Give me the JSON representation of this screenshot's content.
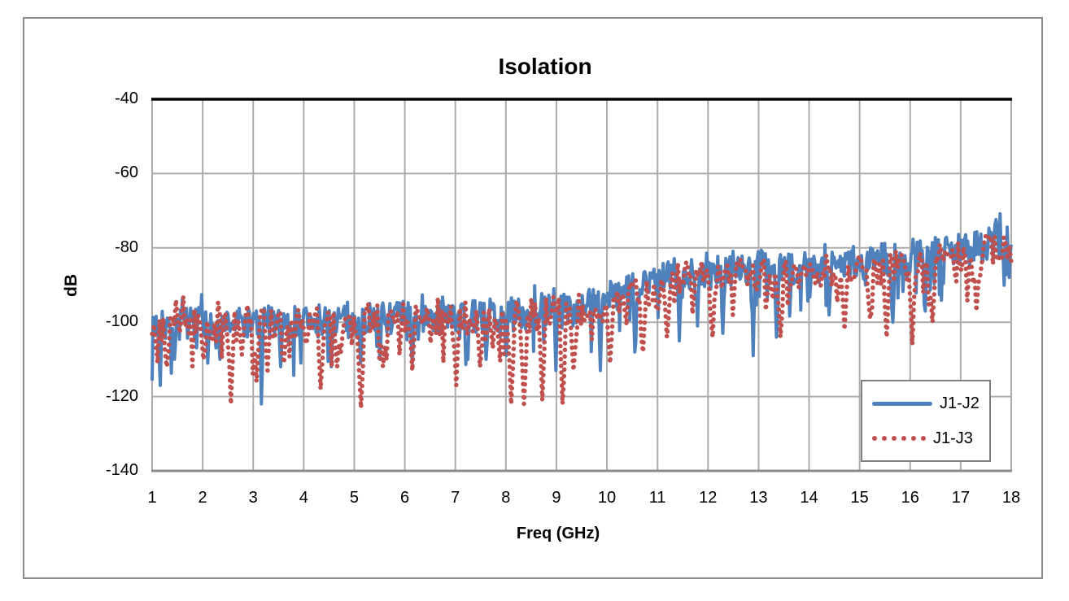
{
  "title": "Isolation",
  "axes": {
    "x": {
      "label": "Freq (GHz)",
      "min": 1,
      "max": 18,
      "tick_labels": [
        "1",
        "2",
        "3",
        "4",
        "5",
        "6",
        "7",
        "8",
        "9",
        "10",
        "11",
        "12",
        "13",
        "14",
        "15",
        "16",
        "17",
        "18"
      ],
      "tick_values": [
        1,
        2,
        3,
        4,
        5,
        6,
        7,
        8,
        9,
        10,
        11,
        12,
        13,
        14,
        15,
        16,
        17,
        18
      ]
    },
    "y": {
      "label": "dB",
      "min": -140,
      "max": -40,
      "tick_labels": [
        "-40",
        "-60",
        "-80",
        "-100",
        "-120",
        "-140"
      ],
      "tick_values": [
        -40,
        -60,
        -80,
        -100,
        -120,
        -140
      ]
    }
  },
  "legend": {
    "position": "inside-bottom-right",
    "items": [
      {
        "label": "J1-J2",
        "color": "#4F81BD",
        "line_style": "solid"
      },
      {
        "label": "J1-J3",
        "color": "#C0504D",
        "line_style": "dotted"
      }
    ]
  },
  "colors": {
    "series_j1j2": "#4F81BD",
    "series_j1j3": "#C0504D",
    "gridline": "#ACACAC",
    "axis_line": "#8C8C8C",
    "chart_border": "#8C8C8C",
    "plot_top_line": "#000000",
    "text": "#000000",
    "background": "#FFFFFF"
  },
  "chart_data": {
    "type": "line",
    "title": "Isolation",
    "xlabel": "Freq (GHz)",
    "ylabel": "dB",
    "xlim": [
      1,
      18
    ],
    "ylim": [
      -140,
      -40
    ],
    "x_ticks": [
      1,
      2,
      3,
      4,
      5,
      6,
      7,
      8,
      9,
      10,
      11,
      12,
      13,
      14,
      15,
      16,
      17,
      18
    ],
    "y_ticks": [
      -140,
      -120,
      -100,
      -80,
      -60,
      -40
    ],
    "grid": true,
    "legend_position": "inside-bottom-right",
    "series": [
      {
        "name": "J1-J2",
        "color": "#4F81BD",
        "line_style": "solid",
        "line_width": 4,
        "points": 850,
        "seed": 7,
        "trend_db_by_ghz": [
          [
            1,
            -100.5
          ],
          [
            2,
            -100.5
          ],
          [
            3,
            -100
          ],
          [
            4,
            -99.5
          ],
          [
            5,
            -99
          ],
          [
            6,
            -98.5
          ],
          [
            7,
            -98.5
          ],
          [
            8,
            -98
          ],
          [
            9,
            -97
          ],
          [
            9.7,
            -96
          ],
          [
            10.2,
            -93.5
          ],
          [
            10.7,
            -90
          ],
          [
            11.2,
            -87.5
          ],
          [
            11.7,
            -86.5
          ],
          [
            12.5,
            -86
          ],
          [
            13,
            -85.5
          ],
          [
            14,
            -85
          ],
          [
            15,
            -84
          ],
          [
            16,
            -82.5
          ],
          [
            17,
            -80
          ],
          [
            18,
            -78.5
          ]
        ],
        "noise_halfspan_db": 4.5,
        "dip_prob": 0.1,
        "dip_max_extra_db": 9,
        "peak_prob": 0.06,
        "peak_max_extra_db": 4,
        "deep_dips_ghz_db": [
          [
            1.16,
            -117
          ],
          [
            1.45,
            -110
          ],
          [
            2.1,
            -111
          ],
          [
            2.35,
            -110
          ],
          [
            3.17,
            -122
          ],
          [
            3.55,
            -112
          ],
          [
            4.55,
            -112
          ],
          [
            5.12,
            -111
          ],
          [
            5.5,
            -110
          ],
          [
            6.15,
            -111
          ],
          [
            7.25,
            -110
          ],
          [
            7.6,
            -110
          ],
          [
            8.0,
            -109
          ],
          [
            8.98,
            -113
          ],
          [
            9.87,
            -113
          ],
          [
            10.55,
            -108
          ],
          [
            11.43,
            -105
          ],
          [
            11.8,
            -101
          ],
          [
            12.3,
            -103
          ],
          [
            12.9,
            -109
          ],
          [
            13.35,
            -104
          ],
          [
            14.4,
            -98
          ],
          [
            15.65,
            -100
          ],
          [
            16.3,
            -97
          ]
        ]
      },
      {
        "name": "J1-J3",
        "color": "#C0504D",
        "line_style": "dotted",
        "line_width": 5.5,
        "dot_spacing_px": 8,
        "points": 470,
        "seed": 99,
        "trend_db_by_ghz": [
          [
            1,
            -101
          ],
          [
            2,
            -101
          ],
          [
            3,
            -100.5
          ],
          [
            4,
            -100
          ],
          [
            5,
            -99.5
          ],
          [
            6,
            -99
          ],
          [
            7,
            -99
          ],
          [
            8,
            -98.5
          ],
          [
            9,
            -97.5
          ],
          [
            9.7,
            -96.5
          ],
          [
            10.2,
            -94.5
          ],
          [
            10.7,
            -91.5
          ],
          [
            11.2,
            -89
          ],
          [
            11.7,
            -88
          ],
          [
            12.5,
            -87.5
          ],
          [
            13,
            -87
          ],
          [
            14,
            -86.5
          ],
          [
            15,
            -85.5
          ],
          [
            16,
            -84.5
          ],
          [
            17,
            -82
          ],
          [
            18,
            -80.5
          ]
        ],
        "noise_halfspan_db": 4.5,
        "dip_prob": 0.15,
        "dip_max_extra_db": 9,
        "peak_prob": 0.06,
        "peak_max_extra_db": 4,
        "deep_dips_ghz_db": [
          [
            1.3,
            -112
          ],
          [
            2.0,
            -110
          ],
          [
            2.55,
            -122
          ],
          [
            3.05,
            -116
          ],
          [
            3.3,
            -113
          ],
          [
            3.6,
            -111
          ],
          [
            4.35,
            -118
          ],
          [
            4.65,
            -112
          ],
          [
            5.15,
            -123
          ],
          [
            5.55,
            -112
          ],
          [
            6.15,
            -113
          ],
          [
            7.03,
            -117
          ],
          [
            7.5,
            -112
          ],
          [
            8.1,
            -122
          ],
          [
            8.37,
            -122
          ],
          [
            8.73,
            -121
          ],
          [
            9.13,
            -122
          ],
          [
            9.35,
            -113
          ],
          [
            10.06,
            -111
          ],
          [
            10.7,
            -108
          ],
          [
            11.2,
            -104
          ],
          [
            12.1,
            -104
          ],
          [
            13.45,
            -104
          ],
          [
            14.7,
            -102
          ],
          [
            15.2,
            -99
          ],
          [
            15.55,
            -104
          ],
          [
            16.05,
            -106
          ],
          [
            16.45,
            -100
          ],
          [
            17.3,
            -97
          ]
        ]
      }
    ]
  }
}
